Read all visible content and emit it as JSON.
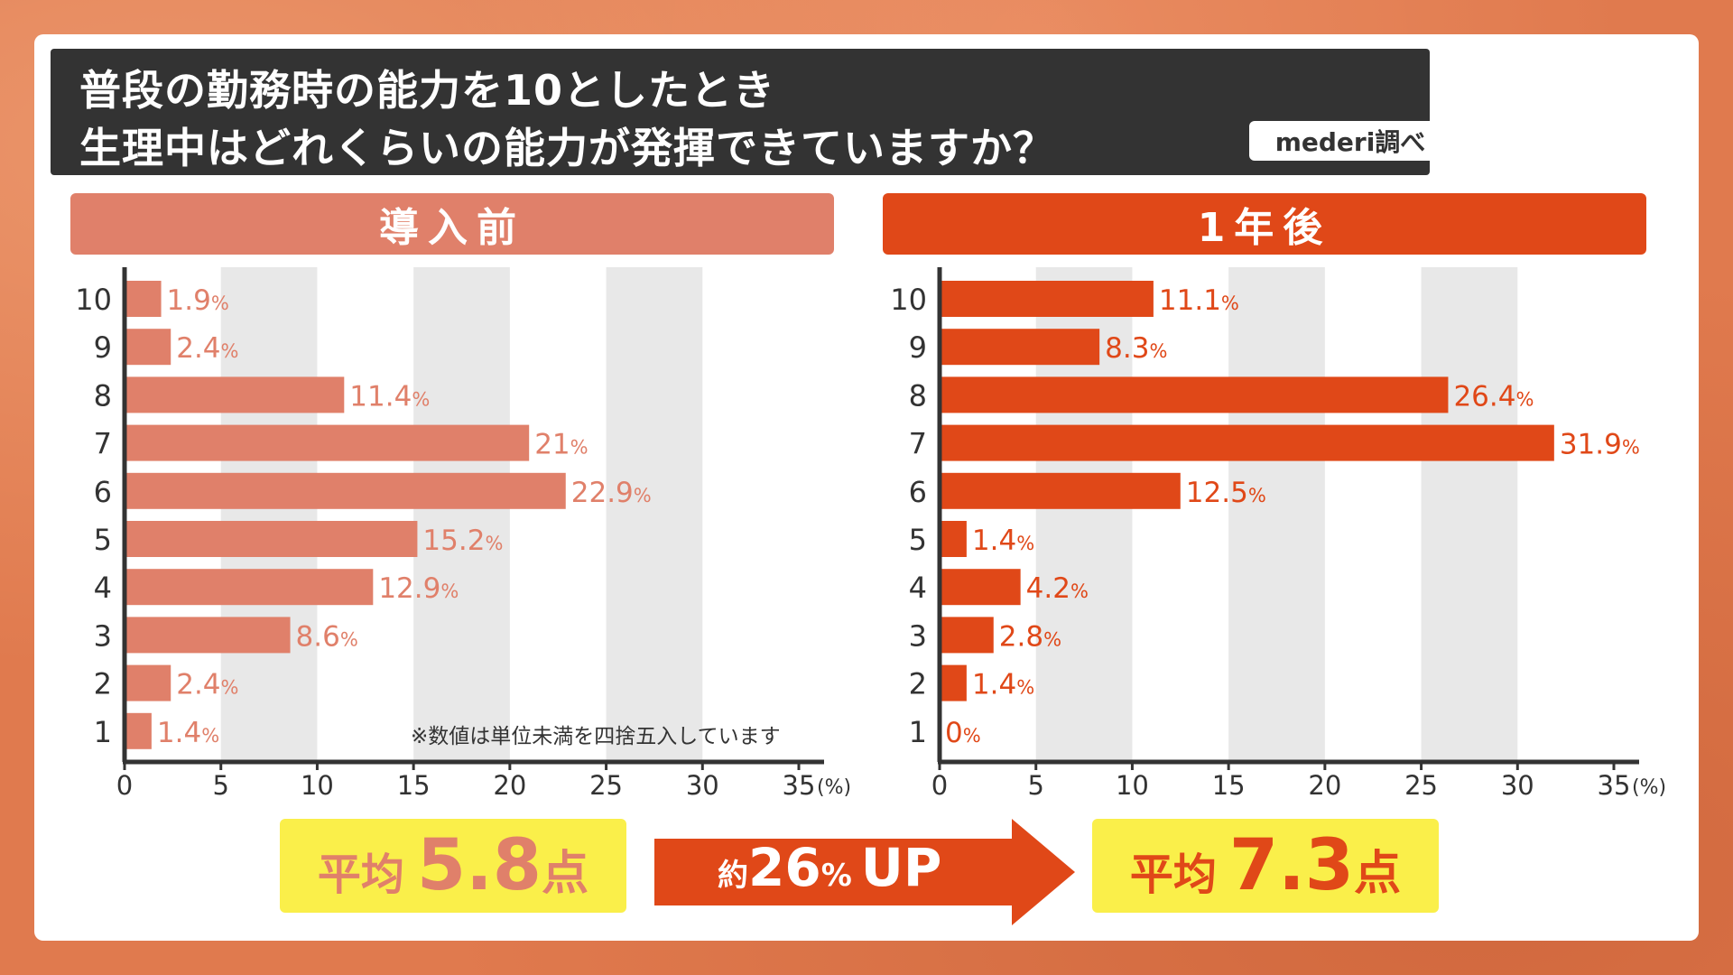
{
  "title": {
    "line1": "普段の勤務時の能力を10としたとき",
    "line2": "生理中はどれくらいの能力が発揮できていますか？",
    "source": "mederi調べ"
  },
  "footnote": "※数値は単位未満を四捨五入しています",
  "colors": {
    "before": "#e0806a",
    "after": "#e04818",
    "title_bg": "#333333",
    "score_bg": "#faef4a",
    "grid_band": "#e8e8e8"
  },
  "summary": {
    "before": {
      "label": "平均",
      "value": "5.8",
      "unit": "点"
    },
    "after": {
      "label": "平均",
      "value": "7.3",
      "unit": "点"
    },
    "change": {
      "prefix": "約",
      "value": "26",
      "pct": "%",
      "suffix": "UP"
    }
  },
  "chart_data": [
    {
      "type": "bar",
      "orientation": "horizontal",
      "title": "導入前",
      "categories": [
        "10",
        "9",
        "8",
        "7",
        "6",
        "5",
        "4",
        "3",
        "2",
        "1"
      ],
      "values": [
        1.9,
        2.4,
        11.4,
        21,
        22.9,
        15.2,
        12.9,
        8.6,
        2.4,
        1.4
      ],
      "labels": [
        "1.9",
        "2.4",
        "11.4",
        "21",
        "22.9",
        "15.2",
        "12.9",
        "8.6",
        "2.4",
        "1.4"
      ],
      "xlim": [
        0,
        35
      ],
      "xticks": [
        "0",
        "5",
        "10",
        "15",
        "20",
        "25",
        "30",
        "35"
      ],
      "xunit": "(%)",
      "label_unit": "%"
    },
    {
      "type": "bar",
      "orientation": "horizontal",
      "title": "1年後",
      "categories": [
        "10",
        "9",
        "8",
        "7",
        "6",
        "5",
        "4",
        "3",
        "2",
        "1"
      ],
      "values": [
        11.1,
        8.3,
        26.4,
        31.9,
        12.5,
        1.4,
        4.2,
        2.8,
        1.4,
        0
      ],
      "labels": [
        "11.1",
        "8.3",
        "26.4",
        "31.9",
        "12.5",
        "1.4",
        "4.2",
        "2.8",
        "1.4",
        "0"
      ],
      "xlim": [
        0,
        35
      ],
      "xticks": [
        "0",
        "5",
        "10",
        "15",
        "20",
        "25",
        "30",
        "35"
      ],
      "xunit": "(%)",
      "label_unit": "%"
    }
  ]
}
